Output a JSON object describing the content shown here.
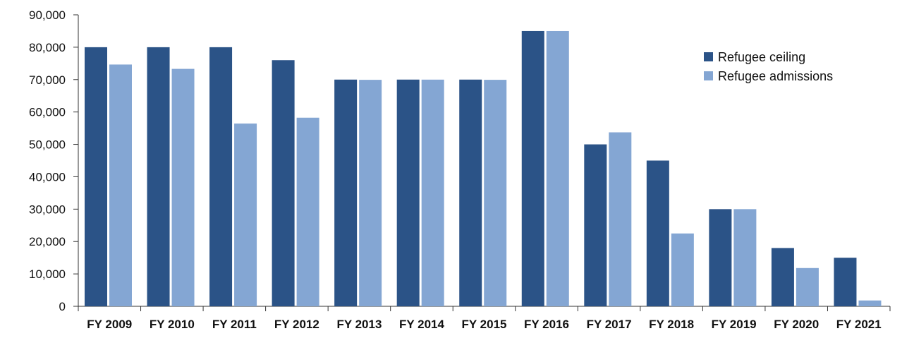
{
  "chart_data": {
    "type": "bar",
    "title": "",
    "xlabel": "",
    "ylabel": "",
    "ylim": [
      0,
      90000
    ],
    "yticks": [
      0,
      10000,
      20000,
      30000,
      40000,
      50000,
      60000,
      70000,
      80000,
      90000
    ],
    "ytick_labels": [
      "0",
      "10,000",
      "20,000",
      "30,000",
      "40,000",
      "50,000",
      "60,000",
      "70,000",
      "80,000",
      "90,000"
    ],
    "grid": false,
    "legend_position": "top-right",
    "categories": [
      "FY 2009",
      "FY 2010",
      "FY 2011",
      "FY 2012",
      "FY 2013",
      "FY 2014",
      "FY 2015",
      "FY 2016",
      "FY 2017",
      "FY 2018",
      "FY 2019",
      "FY 2020",
      "FY 2021"
    ],
    "series": [
      {
        "name": "Refugee ceiling",
        "color": "#2b5387",
        "values": [
          80000,
          80000,
          80000,
          76000,
          70000,
          70000,
          70000,
          85000,
          50000,
          45000,
          30000,
          18000,
          15000
        ]
      },
      {
        "name": "Refugee admissions",
        "color": "#84a6d3",
        "values": [
          74652,
          73311,
          56424,
          58238,
          69926,
          69987,
          69933,
          84994,
          53716,
          22491,
          30000,
          11814,
          1800
        ]
      }
    ]
  }
}
